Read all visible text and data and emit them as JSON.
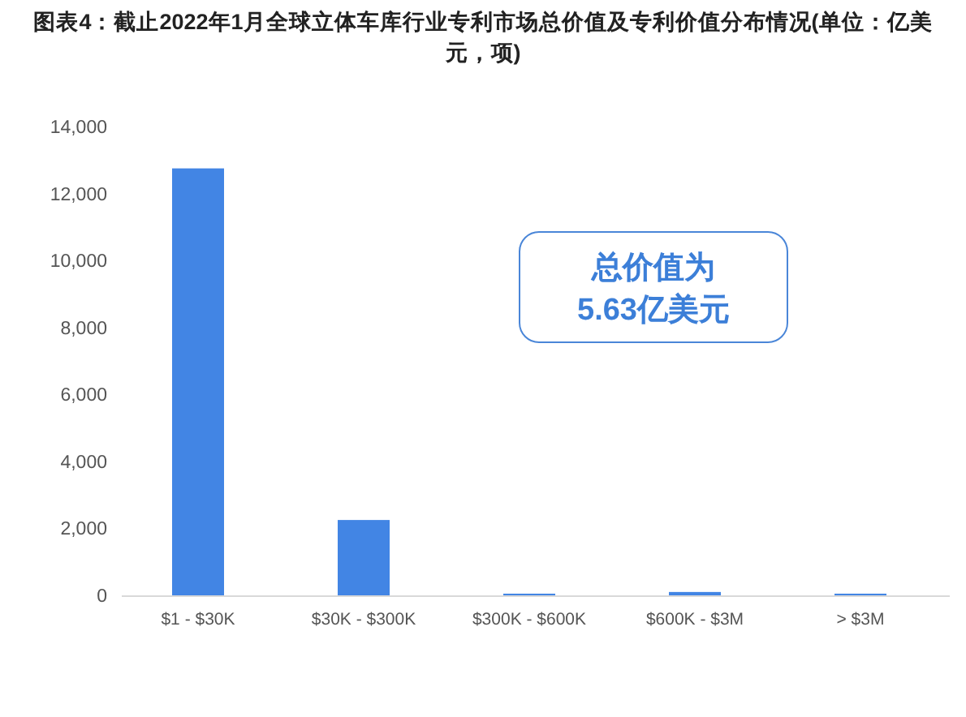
{
  "chart_data": {
    "type": "bar",
    "title": "图表4：截止2022年1月全球立体车库行业专利市场总价值及专利价值分布情况(单位：亿美元，项)",
    "categories": [
      "$1 - $30K",
      "$30K - $300K",
      "$300K - $600K",
      "$600K - $3M",
      "> $3M"
    ],
    "values": [
      12750,
      2250,
      50,
      100,
      50
    ],
    "color": "#4285e4",
    "ylim": [
      0,
      14000
    ],
    "yticks": [
      {
        "value": 0,
        "label": "0"
      },
      {
        "value": 2000,
        "label": "2,000"
      },
      {
        "value": 4000,
        "label": "4,000"
      },
      {
        "value": 6000,
        "label": "6,000"
      },
      {
        "value": 8000,
        "label": "8,000"
      },
      {
        "value": 10000,
        "label": "10,000"
      },
      {
        "value": 12000,
        "label": "12,000"
      },
      {
        "value": 14000,
        "label": "14,000"
      }
    ],
    "grid": false,
    "annotations": [
      "总价值为",
      "5.63亿美元"
    ]
  }
}
